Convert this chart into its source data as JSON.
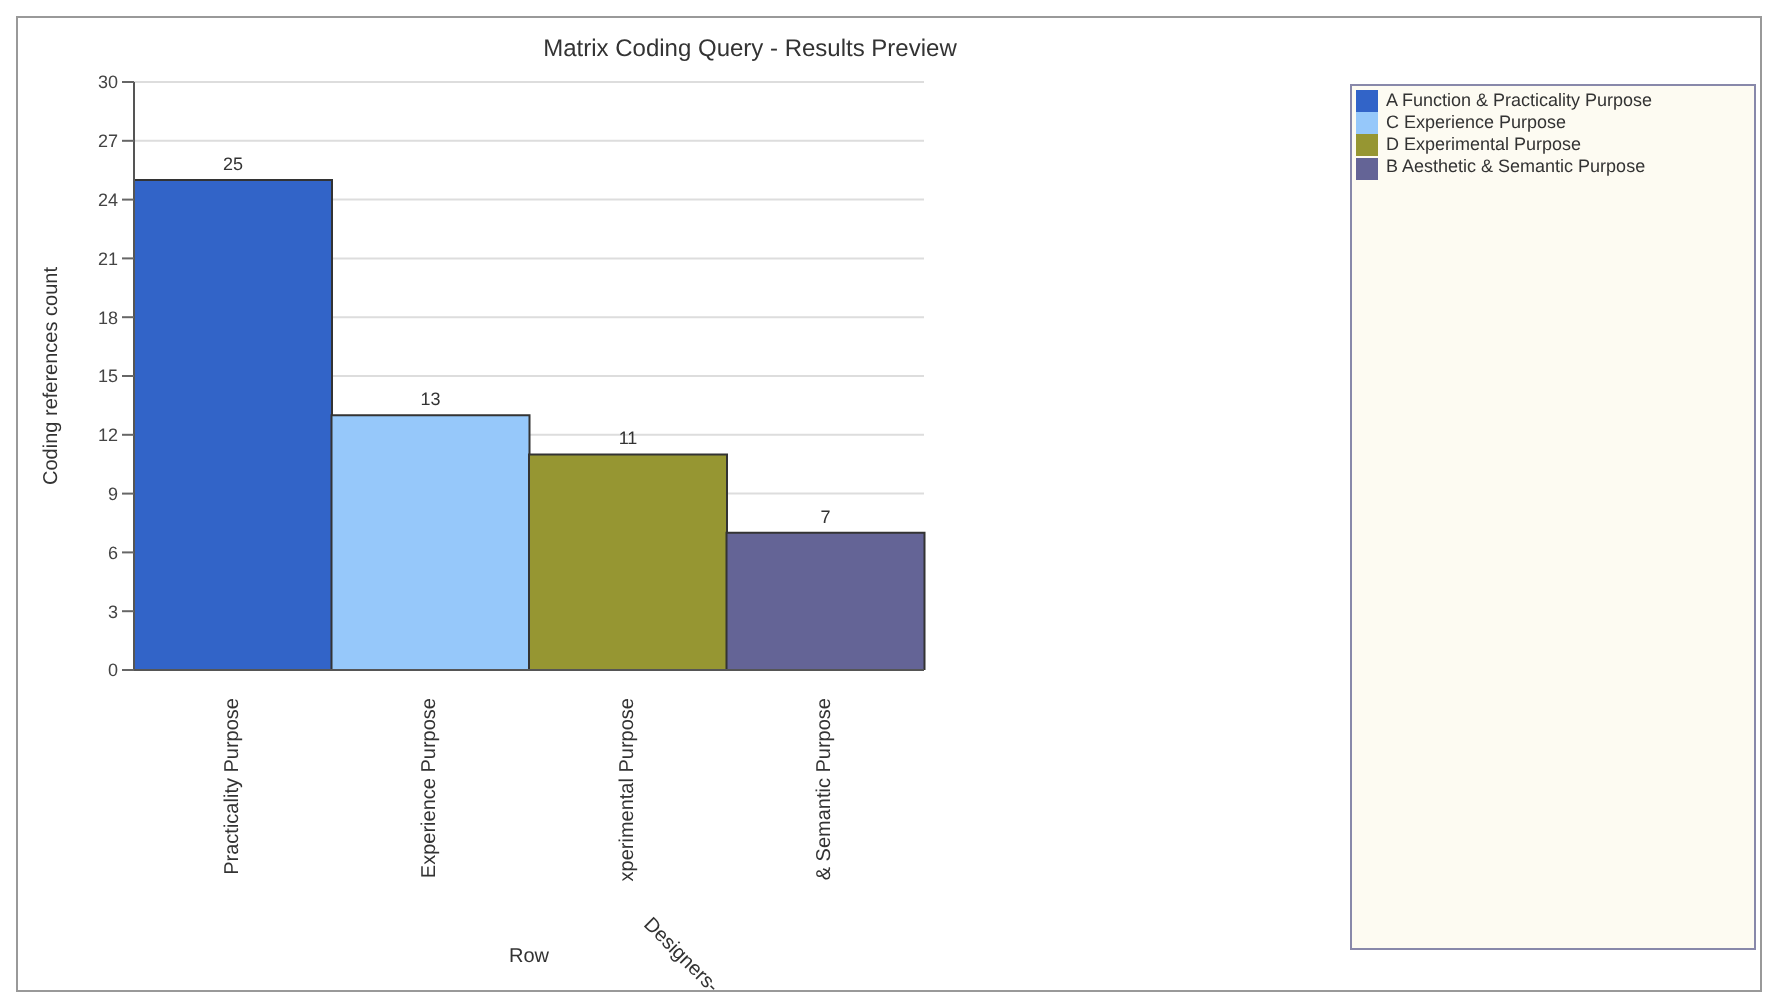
{
  "chart_data": {
    "type": "bar",
    "title": "Matrix Coding Query - Results Preview",
    "xlabel": "Row",
    "ylabel": "Coding references count",
    "annotations": [
      "Designers-"
    ],
    "categories": [
      "Practicality Purpose",
      "Experience Purpose",
      "xperimental Purpose",
      "& Semantic Purpose"
    ],
    "series": [
      {
        "name": "A Function & Practicality Purpose",
        "color": "#3264c8",
        "values": [
          25,
          null,
          null,
          null
        ]
      },
      {
        "name": "C Experience Purpose",
        "color": "#96c8fa",
        "values": [
          null,
          13,
          null,
          null
        ]
      },
      {
        "name": "D Experimental Purpose",
        "color": "#969632",
        "values": [
          null,
          null,
          11,
          null
        ]
      },
      {
        "name": "B Aesthetic & Semantic Purpose",
        "color": "#646496",
        "values": [
          null,
          null,
          null,
          7
        ]
      }
    ],
    "ylim": [
      0,
      30
    ],
    "yticks": [
      0,
      3,
      6,
      9,
      12,
      15,
      18,
      21,
      24,
      27,
      30
    ],
    "grid": "y",
    "data_labels": true,
    "legend": "right"
  }
}
